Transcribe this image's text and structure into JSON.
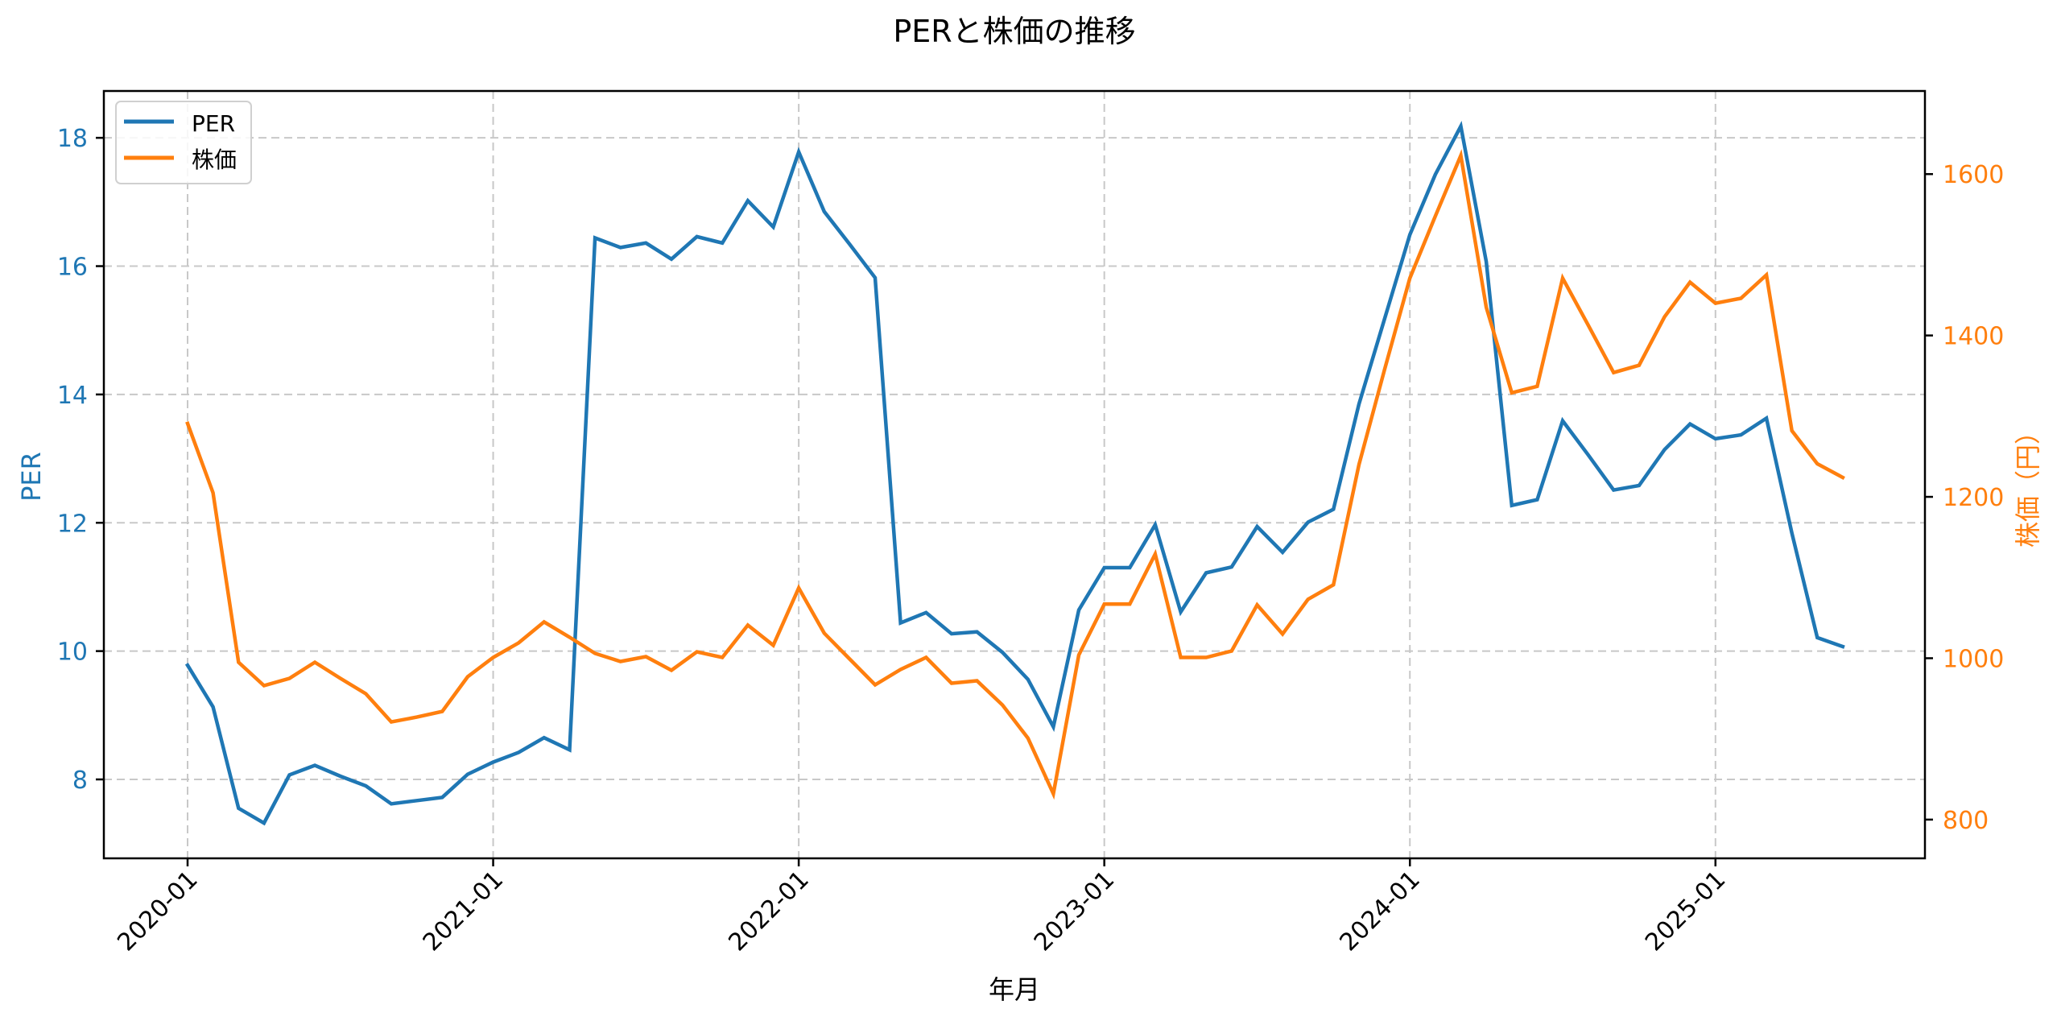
{
  "chart_data": {
    "type": "line",
    "title": "PERと株価の推移",
    "xlabel": "年月",
    "ylabel": "PER",
    "ylabel_right": "株価（円）",
    "x_tick_labels": [
      "2020-01",
      "2021-01",
      "2022-01",
      "2023-01",
      "2024-01",
      "2025-01"
    ],
    "y_ticks_left": [
      8,
      10,
      12,
      14,
      16,
      18
    ],
    "y_ticks_right": [
      800,
      1000,
      1200,
      1400,
      1600
    ],
    "ylim_left": [
      6.77,
      18.73
    ],
    "ylim_right": [
      752,
      1703
    ],
    "grid": true,
    "legend_position": "upper left",
    "legend": [
      "PER",
      "株価"
    ],
    "colors": {
      "PER": "#1f77b4",
      "株価": "#ff7f0e",
      "grid": "#c8c8c8",
      "axis": "#000000"
    },
    "x": [
      "2020-01",
      "2020-02",
      "2020-03",
      "2020-04",
      "2020-05",
      "2020-06",
      "2020-07",
      "2020-08",
      "2020-09",
      "2020-10",
      "2020-11",
      "2020-12",
      "2021-01",
      "2021-02",
      "2021-03",
      "2021-04",
      "2021-05",
      "2021-06",
      "2021-07",
      "2021-08",
      "2021-09",
      "2021-10",
      "2021-11",
      "2021-12",
      "2022-01",
      "2022-02",
      "2022-03",
      "2022-04",
      "2022-05",
      "2022-06",
      "2022-07",
      "2022-08",
      "2022-09",
      "2022-10",
      "2022-11",
      "2022-12",
      "2023-01",
      "2023-02",
      "2023-03",
      "2023-04",
      "2023-05",
      "2023-06",
      "2023-07",
      "2023-08",
      "2023-09",
      "2023-10",
      "2023-11",
      "2023-12",
      "2024-01",
      "2024-02",
      "2024-03",
      "2024-04",
      "2024-05",
      "2024-06",
      "2024-07",
      "2024-08",
      "2024-09",
      "2024-10",
      "2024-11",
      "2024-12",
      "2025-01",
      "2025-02",
      "2025-03",
      "2025-04",
      "2025-05",
      "2025-06"
    ],
    "series": [
      {
        "name": "PER",
        "axis": "left",
        "values": [
          9.78,
          9.13,
          7.55,
          7.32,
          8.07,
          8.22,
          8.05,
          7.9,
          7.62,
          7.67,
          7.72,
          8.08,
          8.27,
          8.42,
          8.65,
          8.46,
          16.44,
          16.29,
          16.36,
          16.11,
          16.46,
          16.36,
          17.02,
          16.61,
          17.78,
          16.85,
          16.34,
          15.82,
          10.44,
          10.6,
          10.27,
          10.3,
          9.98,
          9.56,
          8.82,
          10.64,
          11.3,
          11.3,
          11.97,
          10.61,
          11.22,
          11.31,
          11.94,
          11.54,
          12.01,
          12.21,
          13.85,
          15.17,
          16.49,
          17.43,
          18.18,
          16.07,
          12.27,
          12.36,
          13.59,
          13.06,
          12.51,
          12.58,
          13.14,
          13.54,
          13.31,
          13.37,
          13.63,
          11.84,
          10.21,
          10.07
        ]
      },
      {
        "name": "株価",
        "axis": "right",
        "values": [
          1291,
          1205,
          995,
          966,
          975,
          995,
          975,
          956,
          921,
          927,
          934,
          977,
          1001,
          1019,
          1045,
          1026,
          1006,
          996,
          1002,
          985,
          1008,
          1001,
          1041,
          1016,
          1087,
          1031,
          999,
          967,
          986,
          1001,
          969,
          972,
          942,
          901,
          832,
          1004,
          1067,
          1067,
          1129,
          1001,
          1001,
          1009,
          1066,
          1030,
          1073,
          1091,
          1240,
          1357,
          1471,
          1548,
          1623,
          1435,
          1329,
          1337,
          1471,
          1413,
          1354,
          1363,
          1423,
          1466,
          1440,
          1446,
          1475,
          1282,
          1241,
          1224
        ]
      }
    ]
  }
}
